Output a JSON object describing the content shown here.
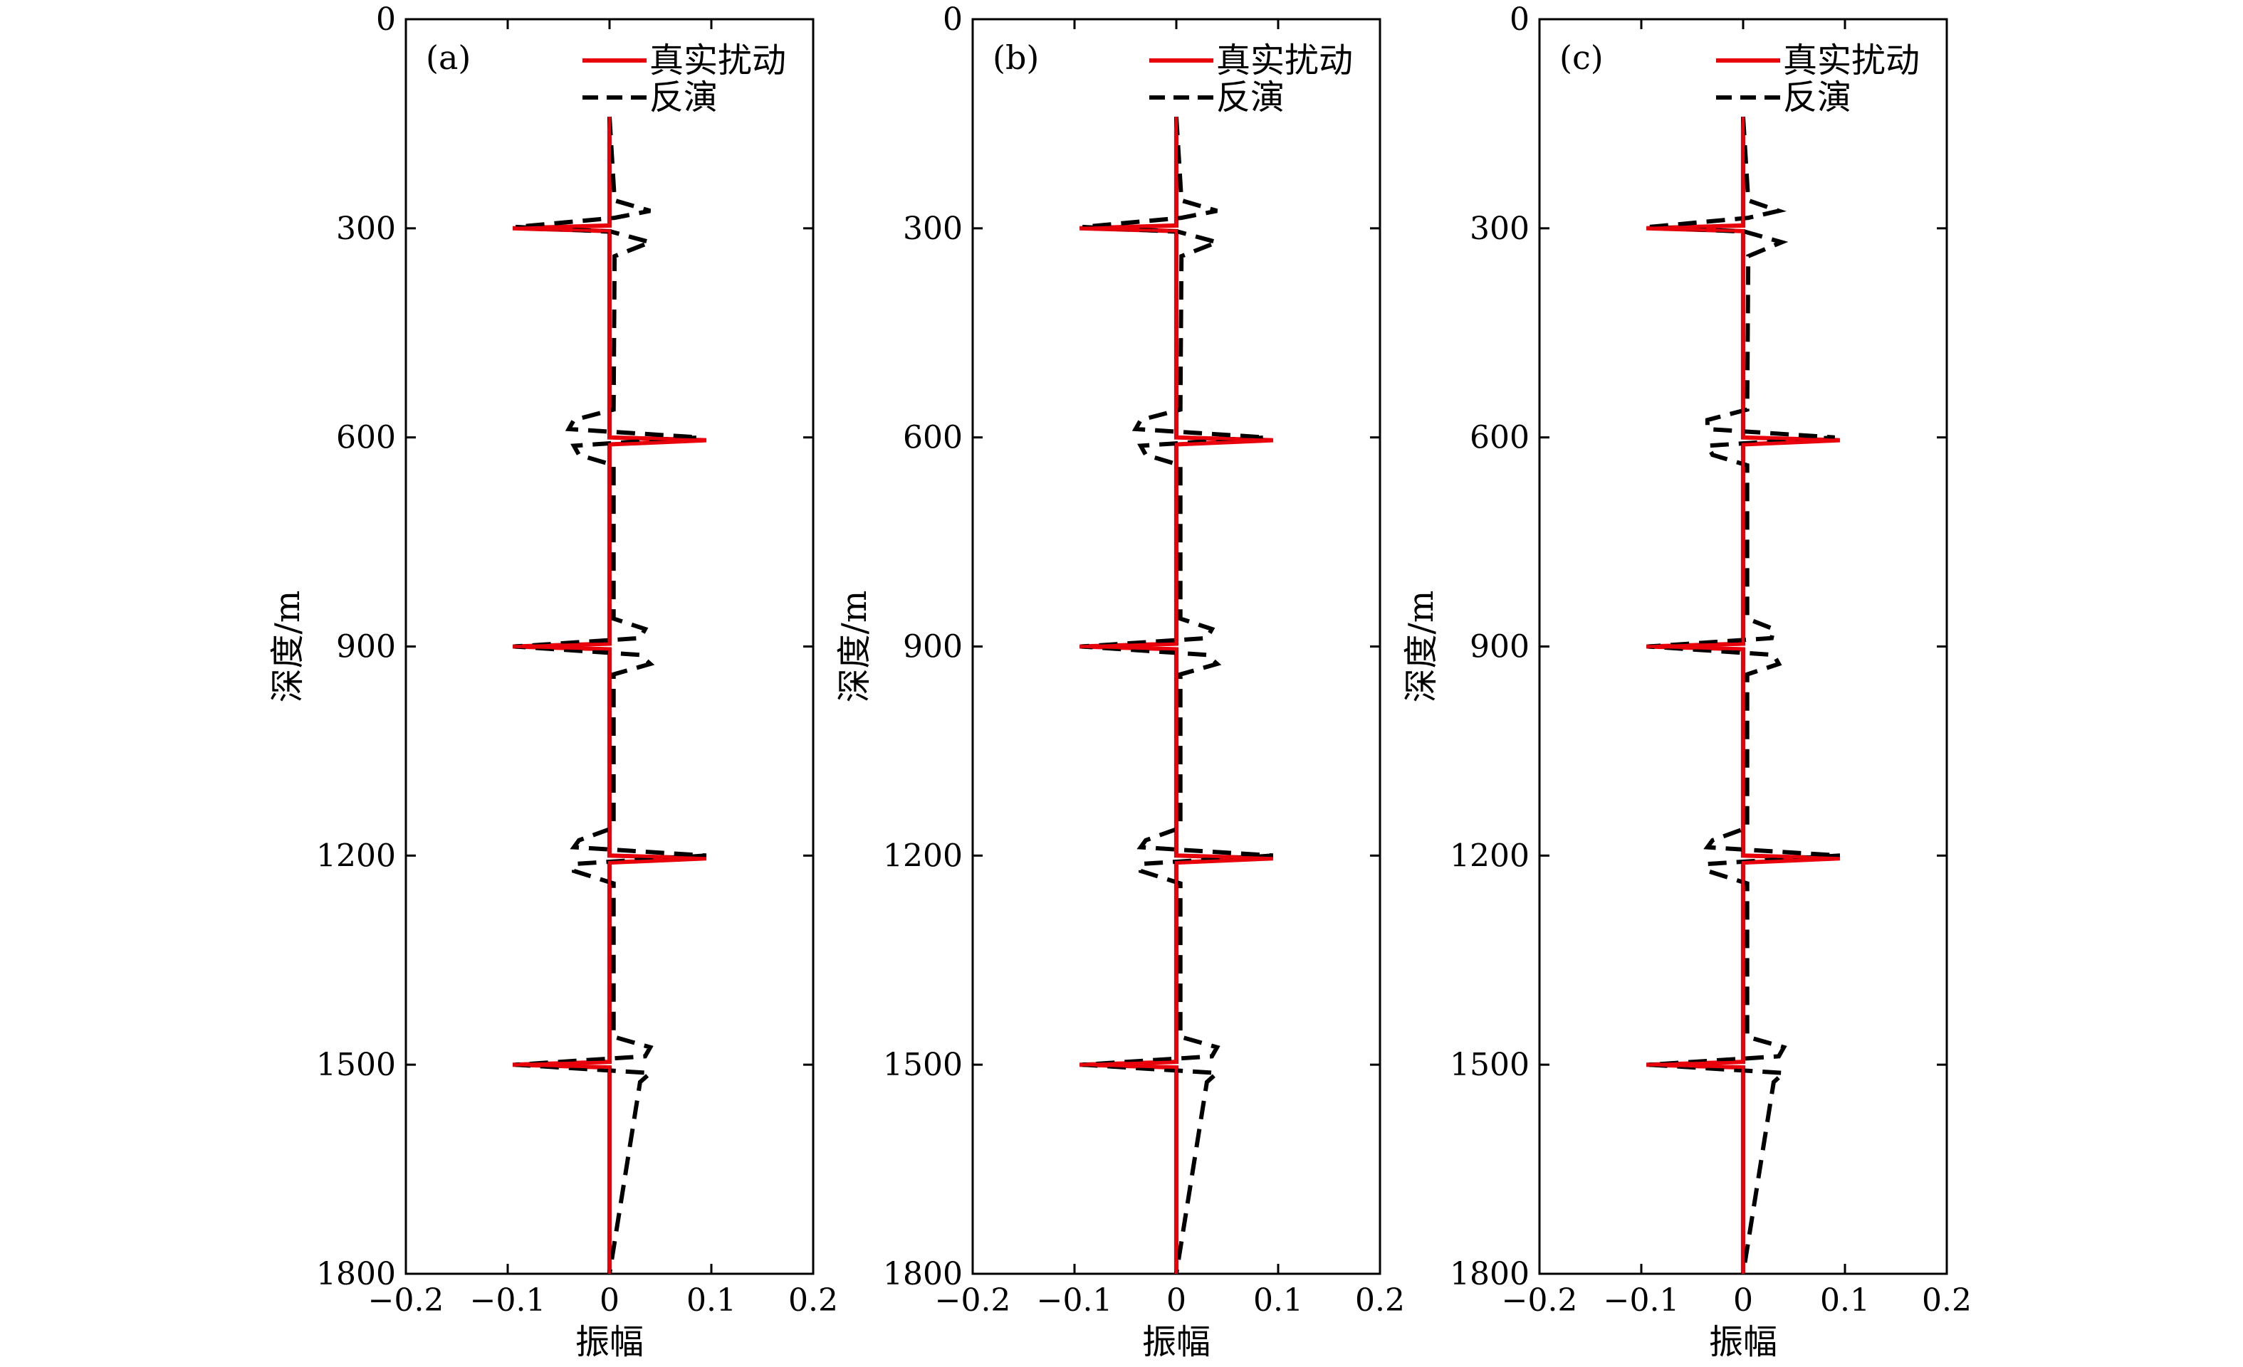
{
  "colors": {
    "true_perturbation": "#e8000b",
    "inversion": "#000000",
    "axes": "#000000",
    "background": "#ffffff"
  },
  "chart_data": [
    {
      "type": "line",
      "panel_label": "(a)",
      "xlabel": "振幅",
      "ylabel": "深度/m",
      "xlim": [
        -0.2,
        0.2
      ],
      "ylim": [
        0,
        1800
      ],
      "y_reversed": true,
      "xticks": [
        "−0.2",
        "−0.1",
        "0",
        "0.1",
        "0.2"
      ],
      "yticks": [
        "0",
        "300",
        "600",
        "900",
        "1200",
        "1500",
        "1800"
      ],
      "legend_position": "top-right",
      "series": [
        {
          "name": "真实扰动",
          "style": "solid",
          "color": "#e8000b",
          "x": [
            0,
            0,
            0,
            0,
            -0.095,
            0,
            0,
            0,
            0,
            0,
            0,
            0.095,
            0,
            0,
            0,
            0,
            -0.095,
            0,
            0,
            0,
            0,
            0,
            0,
            0.095,
            0,
            0,
            0,
            0,
            -0.095,
            0,
            0,
            0,
            0
          ],
          "y": [
            140,
            285,
            292,
            296,
            300,
            304,
            310,
            585,
            592,
            596,
            600,
            604,
            610,
            885,
            892,
            896,
            900,
            904,
            910,
            1185,
            1192,
            1196,
            1200,
            1204,
            1210,
            1485,
            1492,
            1496,
            1500,
            1504,
            1510,
            1800,
            1800
          ]
        },
        {
          "name": "反演",
          "style": "dashed",
          "color": "#000000",
          "x": [
            0,
            0.005,
            0.04,
            0.005,
            -0.092,
            0.002,
            0.04,
            0.005,
            0.004,
            -0.035,
            -0.04,
            0.088,
            -0.035,
            -0.03,
            0.004,
            0.004,
            0.035,
            0.03,
            -0.093,
            0.03,
            0.04,
            0.004,
            0.004,
            -0.03,
            -0.035,
            0.095,
            -0.035,
            -0.035,
            0.004,
            0.004,
            0.04,
            0.035,
            -0.092,
            0.04,
            0.03,
            0
          ],
          "y": [
            140,
            260,
            275,
            285,
            298,
            305,
            320,
            340,
            560,
            575,
            588,
            600,
            612,
            625,
            640,
            860,
            875,
            888,
            900,
            912,
            925,
            940,
            1160,
            1178,
            1188,
            1200,
            1212,
            1222,
            1240,
            1460,
            1475,
            1488,
            1500,
            1512,
            1525,
            1800
          ]
        }
      ]
    },
    {
      "type": "line",
      "panel_label": "(b)",
      "xlabel": "振幅",
      "ylabel": "深度/m",
      "xlim": [
        -0.2,
        0.2
      ],
      "ylim": [
        0,
        1800
      ],
      "y_reversed": true,
      "xticks": [
        "−0.2",
        "−0.1",
        "0",
        "0.1",
        "0.2"
      ],
      "yticks": [
        "0",
        "300",
        "600",
        "900",
        "1200",
        "1500",
        "1800"
      ],
      "legend_position": "top-right",
      "series": [
        {
          "name": "真实扰动",
          "style": "solid",
          "color": "#e8000b",
          "x": [
            0,
            0,
            0,
            0,
            -0.095,
            0,
            0,
            0,
            0,
            0,
            0,
            0.095,
            0,
            0,
            0,
            0,
            -0.095,
            0,
            0,
            0,
            0,
            0,
            0,
            0.095,
            0,
            0,
            0,
            0,
            -0.095,
            0,
            0,
            0,
            0
          ],
          "y": [
            140,
            285,
            292,
            296,
            300,
            304,
            310,
            585,
            592,
            596,
            600,
            604,
            610,
            885,
            892,
            896,
            900,
            904,
            910,
            1185,
            1192,
            1196,
            1200,
            1204,
            1210,
            1485,
            1492,
            1496,
            1500,
            1504,
            1510,
            1800,
            1800
          ]
        },
        {
          "name": "反演",
          "style": "dashed",
          "color": "#000000",
          "x": [
            0,
            0.005,
            0.04,
            0.005,
            -0.092,
            0.002,
            0.04,
            0.005,
            0.004,
            -0.035,
            -0.04,
            0.088,
            -0.035,
            -0.03,
            0.004,
            0.004,
            0.035,
            0.03,
            -0.093,
            0.03,
            0.04,
            0.004,
            0.004,
            -0.03,
            -0.035,
            0.095,
            -0.035,
            -0.035,
            0.004,
            0.004,
            0.04,
            0.035,
            -0.092,
            0.04,
            0.03,
            0
          ],
          "y": [
            140,
            260,
            275,
            285,
            298,
            305,
            320,
            340,
            560,
            575,
            588,
            600,
            612,
            625,
            640,
            860,
            875,
            888,
            900,
            912,
            925,
            940,
            1160,
            1178,
            1188,
            1200,
            1212,
            1222,
            1240,
            1460,
            1475,
            1488,
            1500,
            1512,
            1525,
            1800
          ]
        }
      ]
    },
    {
      "type": "line",
      "panel_label": "(c)",
      "xlabel": "振幅",
      "ylabel": "深度/m",
      "xlim": [
        -0.2,
        0.2
      ],
      "ylim": [
        0,
        1800
      ],
      "y_reversed": true,
      "xticks": [
        "−0.2",
        "−0.1",
        "0",
        "0.1",
        "0.2"
      ],
      "yticks": [
        "0",
        "300",
        "600",
        "900",
        "1200",
        "1500",
        "1800"
      ],
      "legend_position": "top-right",
      "series": [
        {
          "name": "真实扰动",
          "style": "solid",
          "color": "#e8000b",
          "x": [
            0,
            0,
            0,
            0,
            -0.095,
            0,
            0,
            0,
            0,
            0,
            0,
            0.095,
            0,
            0,
            0,
            0,
            -0.095,
            0,
            0,
            0,
            0,
            0,
            0,
            0.095,
            0,
            0,
            0,
            0,
            -0.095,
            0,
            0,
            0,
            0
          ],
          "y": [
            140,
            285,
            292,
            296,
            300,
            304,
            310,
            585,
            592,
            596,
            600,
            604,
            610,
            885,
            892,
            896,
            900,
            904,
            910,
            1185,
            1192,
            1196,
            1200,
            1204,
            1210,
            1485,
            1492,
            1496,
            1500,
            1504,
            1510,
            1800,
            1800
          ]
        },
        {
          "name": "反演",
          "style": "dashed",
          "color": "#000000",
          "x": [
            0,
            0.005,
            0.035,
            0.005,
            -0.092,
            0.002,
            0.038,
            0.005,
            0.004,
            -0.035,
            -0.035,
            0.09,
            -0.035,
            -0.03,
            0.004,
            0.004,
            0.03,
            0.028,
            -0.093,
            0.03,
            0.035,
            0.004,
            0.004,
            -0.03,
            -0.035,
            0.095,
            -0.035,
            -0.035,
            0.004,
            0.004,
            0.04,
            0.035,
            -0.092,
            0.04,
            0.03,
            0
          ],
          "y": [
            140,
            260,
            275,
            285,
            298,
            305,
            320,
            340,
            560,
            575,
            588,
            600,
            612,
            625,
            640,
            860,
            875,
            888,
            900,
            912,
            925,
            940,
            1160,
            1178,
            1188,
            1200,
            1212,
            1222,
            1240,
            1460,
            1475,
            1488,
            1500,
            1512,
            1525,
            1800
          ]
        }
      ]
    }
  ]
}
